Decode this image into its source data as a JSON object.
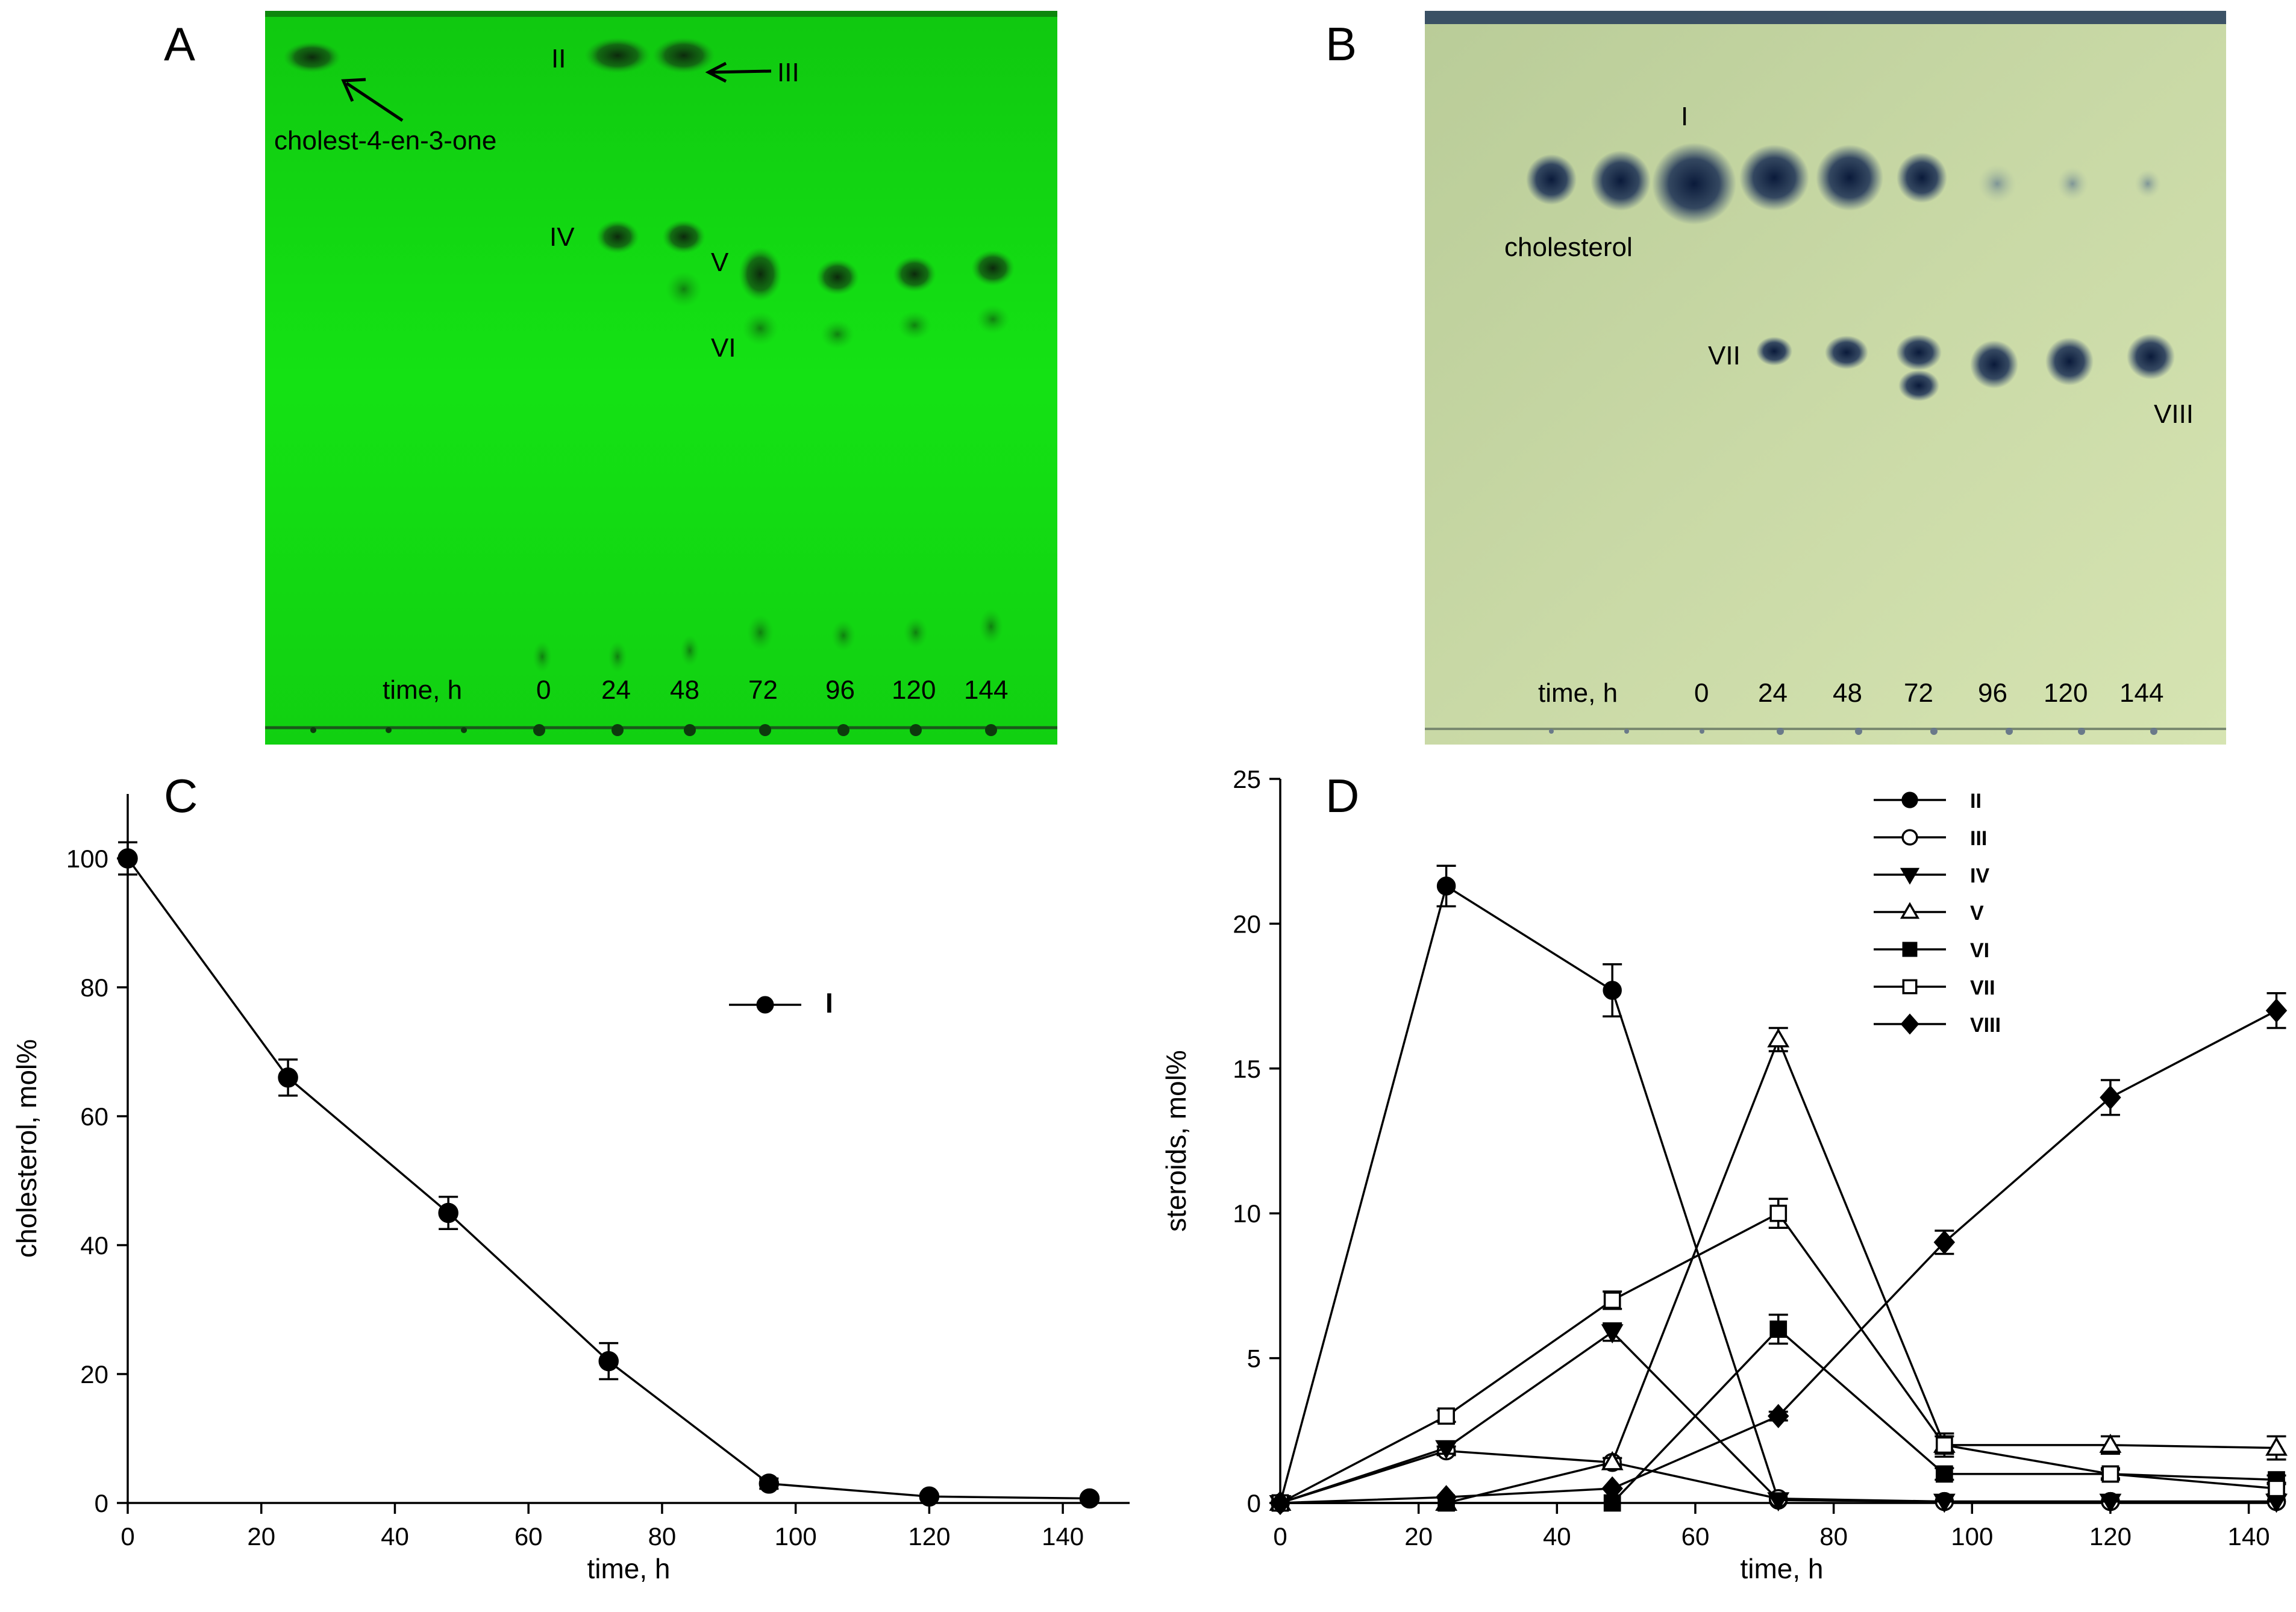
{
  "panels": {
    "A": {
      "label": "A",
      "time_label": "time, h",
      "lanes": [
        "0",
        "24",
        "48",
        "72",
        "96",
        "120",
        "144"
      ],
      "spot_labels": {
        "II": "II",
        "III": "III",
        "IV": "IV",
        "V": "V",
        "VI": "VI"
      },
      "standard_label": "cholest-4-en-3-one",
      "plate_color": "#12dc12"
    },
    "B": {
      "label": "B",
      "time_label": "time, h",
      "lanes": [
        "0",
        "24",
        "48",
        "72",
        "96",
        "120",
        "144"
      ],
      "spot_labels": {
        "I": "I",
        "VII": "VII",
        "VIII": "VIII"
      },
      "standard_label": "cholesterol",
      "plate_color": "#c8d8a2"
    },
    "C": {
      "label": "C"
    },
    "D": {
      "label": "D"
    }
  },
  "chart_data": [
    {
      "panel": "C",
      "type": "line",
      "xlabel": "time, h",
      "ylabel": "cholesterol, mol%",
      "xlim": [
        0,
        150
      ],
      "ylim": [
        0,
        110
      ],
      "xticks": [
        "0",
        "20",
        "40",
        "60",
        "80",
        "100",
        "120",
        "140"
      ],
      "yticks": [
        "0",
        "20",
        "40",
        "60",
        "80",
        "100"
      ],
      "legend_position": "upper-right",
      "series": [
        {
          "name": "I",
          "marker": "circle-filled",
          "x": [
            0,
            24,
            48,
            72,
            96,
            120,
            144
          ],
          "y": [
            100,
            66,
            45,
            22,
            3,
            1,
            0.7
          ],
          "err": [
            2.5,
            2.8,
            2.5,
            2.8,
            0.8,
            0.4,
            0.3
          ]
        }
      ]
    },
    {
      "panel": "D",
      "type": "line",
      "xlabel": "time, h",
      "ylabel": "steroids, mol%",
      "xlim": [
        0,
        145
      ],
      "ylim": [
        0,
        25
      ],
      "xticks": [
        "0",
        "20",
        "40",
        "60",
        "80",
        "100",
        "120",
        "140"
      ],
      "yticks": [
        "0",
        "5",
        "10",
        "15",
        "20",
        "25"
      ],
      "legend_position": "upper-right",
      "series": [
        {
          "name": "II",
          "marker": "circle-filled",
          "x": [
            0,
            24,
            48,
            72,
            96,
            120,
            144
          ],
          "y": [
            0,
            21.3,
            17.7,
            0.1,
            0.05,
            0.05,
            0.05
          ],
          "err": [
            0,
            0.7,
            0.9,
            0,
            0,
            0,
            0
          ]
        },
        {
          "name": "III",
          "marker": "circle-open",
          "x": [
            0,
            24,
            48,
            72,
            96,
            120,
            144
          ],
          "y": [
            0,
            1.8,
            1.4,
            0.15,
            0.05,
            0.05,
            0.05
          ],
          "err": [
            0,
            0.15,
            0.15,
            0,
            0,
            0,
            0
          ]
        },
        {
          "name": "IV",
          "marker": "triangle-down-filled",
          "x": [
            0,
            24,
            48,
            72,
            96,
            120,
            144
          ],
          "y": [
            0,
            1.9,
            5.9,
            0.1,
            0.05,
            0.05,
            0.05
          ],
          "err": [
            0,
            0.2,
            0.3,
            0,
            0,
            0,
            0
          ]
        },
        {
          "name": "V",
          "marker": "triangle-up-open",
          "x": [
            0,
            24,
            48,
            72,
            96,
            120,
            144
          ],
          "y": [
            0,
            0,
            1.4,
            16,
            2,
            2,
            1.9
          ],
          "err": [
            0,
            0,
            0.15,
            0.4,
            0.3,
            0.3,
            0.4
          ]
        },
        {
          "name": "VI",
          "marker": "square-filled",
          "x": [
            0,
            24,
            48,
            72,
            96,
            120,
            144
          ],
          "y": [
            0,
            0,
            0,
            6,
            1,
            1,
            0.8
          ],
          "err": [
            0,
            0,
            0,
            0.5,
            0.2,
            0.15,
            0.15
          ]
        },
        {
          "name": "VII",
          "marker": "square-open",
          "x": [
            0,
            24,
            48,
            72,
            96,
            120,
            144
          ],
          "y": [
            0,
            3,
            7,
            10,
            2,
            1,
            0.5
          ],
          "err": [
            0,
            0.2,
            0.3,
            0.5,
            0.4,
            0.2,
            0.2
          ]
        },
        {
          "name": "VIII",
          "marker": "diamond-filled",
          "x": [
            0,
            24,
            48,
            72,
            96,
            120,
            144
          ],
          "y": [
            0,
            0.2,
            0.5,
            3,
            9,
            14,
            17
          ],
          "err": [
            0,
            0,
            0,
            0.15,
            0.4,
            0.6,
            0.6
          ]
        }
      ]
    }
  ]
}
